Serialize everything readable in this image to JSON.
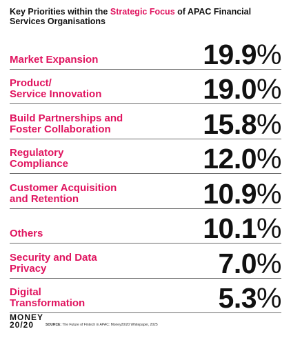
{
  "title": {
    "part1": "Key Priorities within the ",
    "highlight": "Strategic Focus",
    "part2": " of APAC Financial Services Organisations"
  },
  "colors": {
    "accent": "#e0145f",
    "text": "#111111",
    "rule": "#6b6b6b"
  },
  "chart_data": {
    "type": "table",
    "categories": [
      "Market Expansion",
      "Product/\nService Innovation",
      "Build Partnerships and\nFoster Collaboration",
      "Regulatory\nCompliance",
      "Customer Acquisition\nand Retention",
      "Others",
      "Security and Data\nPrivacy",
      "Digital\nTransformation"
    ],
    "values": [
      19.9,
      19.0,
      15.8,
      12.0,
      10.9,
      10.1,
      7.0,
      5.3
    ],
    "value_labels": [
      "19.9",
      "19.0",
      "15.8",
      "12.0",
      "10.9",
      "10.1",
      "7.0",
      "5.3"
    ],
    "unit": "%"
  },
  "footer": {
    "logo_line1": "MONEY",
    "logo_line2": "20/20",
    "source_label": "SOURCE:",
    "source_text": " The Future of Fintech in APAC: Money20/20 Whitepaper, 2025"
  }
}
